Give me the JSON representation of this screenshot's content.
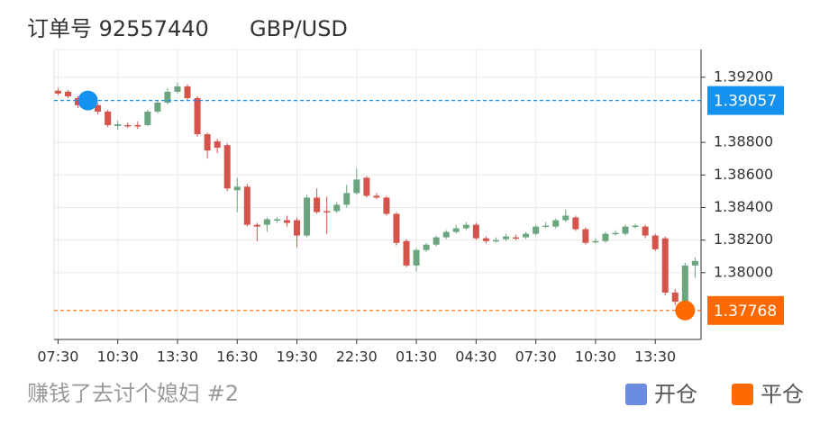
{
  "chart_data": {
    "type": "candlestick",
    "title": "订单号 92557440",
    "symbol": "GBP/USD",
    "footer": "赚钱了去讨个媳妇 #2",
    "up_color": "#6aa57f",
    "down_color": "#d4534a",
    "categories": [
      "07:30",
      null,
      null,
      null,
      null,
      null,
      "10:30",
      null,
      null,
      null,
      null,
      null,
      "13:30",
      null,
      null,
      null,
      null,
      null,
      "16:30",
      null,
      null,
      null,
      null,
      null,
      "19:30",
      null,
      null,
      null,
      null,
      null,
      "22:30",
      null,
      null,
      null,
      null,
      null,
      "01:30",
      null,
      null,
      null,
      null,
      null,
      "04:30",
      null,
      null,
      null,
      null,
      null,
      "07:30",
      null,
      null,
      null,
      null,
      null,
      "10:30",
      null,
      null,
      null,
      null,
      null,
      "13:30",
      null,
      null,
      null,
      null
    ],
    "open": [
      1.39117,
      1.39111,
      1.39072,
      1.39044,
      1.39028,
      1.38989,
      1.389,
      1.38906,
      1.38906,
      1.38906,
      1.38989,
      1.39044,
      1.39111,
      1.39144,
      1.39072,
      1.3885,
      1.38806,
      1.38783,
      1.38506,
      1.38528,
      1.38294,
      1.38294,
      1.38322,
      1.38322,
      1.38322,
      1.38228,
      1.38461,
      1.38378,
      1.38378,
      1.38417,
      1.38489,
      1.38583,
      1.38472,
      1.38461,
      1.38361,
      1.38194,
      1.38044,
      1.38139,
      1.38172,
      1.38217,
      1.3825,
      1.38272,
      1.38294,
      1.38211,
      1.38194,
      1.38206,
      1.38217,
      1.38217,
      1.38239,
      1.38283,
      1.38283,
      1.38322,
      1.38339,
      1.38267,
      1.38189,
      1.38194,
      1.38239,
      1.38239,
      1.38283,
      1.38283,
      1.38228,
      1.38211,
      1.37878,
      1.37822,
      1.38044
    ],
    "high": [
      1.39133,
      1.39122,
      1.39083,
      1.39056,
      1.39039,
      1.39,
      1.38933,
      1.38922,
      1.38928,
      1.39,
      1.39061,
      1.39133,
      1.39167,
      1.39156,
      1.39083,
      1.38861,
      1.38822,
      1.38794,
      1.38583,
      1.38544,
      1.38306,
      1.38339,
      1.38339,
      1.3835,
      1.38339,
      1.38478,
      1.38517,
      1.38467,
      1.38433,
      1.38539,
      1.38639,
      1.38594,
      1.38489,
      1.38472,
      1.38372,
      1.38206,
      1.3815,
      1.38183,
      1.38228,
      1.38261,
      1.38294,
      1.38311,
      1.38306,
      1.38222,
      1.38217,
      1.38239,
      1.38233,
      1.3825,
      1.38294,
      1.38311,
      1.38333,
      1.38389,
      1.3835,
      1.38278,
      1.38211,
      1.3825,
      1.38261,
      1.38294,
      1.383,
      1.38294,
      1.38239,
      1.38222,
      1.379,
      1.38061,
      1.38094
    ],
    "low": [
      1.39089,
      1.39072,
      1.39011,
      1.39017,
      1.38972,
      1.38894,
      1.38878,
      1.38889,
      1.38883,
      1.389,
      1.38978,
      1.39033,
      1.391,
      1.39061,
      1.38833,
      1.387,
      1.38733,
      1.385,
      1.38372,
      1.38283,
      1.38194,
      1.3825,
      1.38306,
      1.38283,
      1.38156,
      1.38217,
      1.38361,
      1.38239,
      1.38367,
      1.384,
      1.38478,
      1.38461,
      1.3845,
      1.3835,
      1.38167,
      1.38033,
      1.38006,
      1.38128,
      1.38161,
      1.38206,
      1.38239,
      1.38261,
      1.382,
      1.38178,
      1.38183,
      1.38194,
      1.382,
      1.38206,
      1.38228,
      1.38272,
      1.38272,
      1.38311,
      1.38256,
      1.38172,
      1.38178,
      1.38183,
      1.38228,
      1.38228,
      1.38272,
      1.38211,
      1.38133,
      1.37861,
      1.378,
      1.37789,
      1.37967
    ],
    "close": [
      1.391,
      1.39083,
      1.39028,
      1.39028,
      1.38989,
      1.38906,
      1.38911,
      1.389,
      1.389,
      1.38989,
      1.39044,
      1.39111,
      1.39144,
      1.39072,
      1.3885,
      1.3875,
      1.38767,
      1.38517,
      1.38528,
      1.38294,
      1.38283,
      1.38328,
      1.38328,
      1.38306,
      1.38228,
      1.38461,
      1.38372,
      1.38372,
      1.38417,
      1.38489,
      1.38572,
      1.38472,
      1.38461,
      1.38361,
      1.38183,
      1.38044,
      1.38139,
      1.38172,
      1.38217,
      1.3825,
      1.38272,
      1.38294,
      1.38211,
      1.38194,
      1.382,
      1.38222,
      1.38211,
      1.38239,
      1.38283,
      1.38289,
      1.38322,
      1.3835,
      1.38267,
      1.38183,
      1.38194,
      1.38239,
      1.38244,
      1.38283,
      1.38289,
      1.38228,
      1.38144,
      1.37878,
      1.37822,
      1.38044,
      1.38072
    ],
    "ylim": [
      1.3759,
      1.3937
    ],
    "yticks": [
      {
        "value": 1.392,
        "label": "1.39200"
      },
      {
        "value": 1.388,
        "label": "1.38800"
      },
      {
        "value": 1.386,
        "label": "1.38600"
      },
      {
        "value": 1.384,
        "label": "1.38400"
      },
      {
        "value": 1.382,
        "label": "1.38200"
      },
      {
        "value": 1.38,
        "label": "1.38000"
      }
    ],
    "grid": true,
    "markers": [
      {
        "name": "开仓",
        "color": "#1592ef",
        "legend_color": "#6b8ce0",
        "x": 3,
        "value": 1.39057
      },
      {
        "name": "平仓",
        "color": "#ff6a00",
        "legend_color": "#ff6a00",
        "x": 63,
        "value": 1.37768
      }
    ]
  }
}
